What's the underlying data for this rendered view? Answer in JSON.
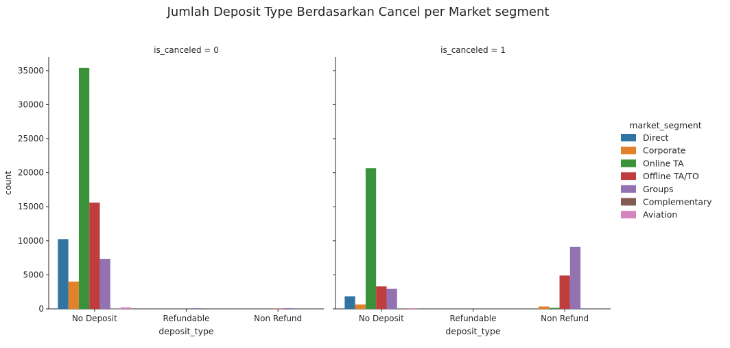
{
  "chart_data": {
    "type": "bar",
    "title": "Jumlah Deposit Type Berdasarkan Cancel per Market segment",
    "ylabel": "count",
    "xlabel": "deposit_type",
    "ylim": [
      0,
      37000
    ],
    "yticks": [
      0,
      5000,
      10000,
      15000,
      20000,
      25000,
      30000,
      35000
    ],
    "categories": [
      "No Deposit",
      "Refundable",
      "Non Refund"
    ],
    "legend": {
      "title": "market_segment",
      "placement": "right",
      "entries": [
        "Direct",
        "Corporate",
        "Online TA",
        "Offline TA/TO",
        "Groups",
        "Complementary",
        "Aviation"
      ]
    },
    "colors": [
      "#3274a1",
      "#e1812c",
      "#3a923a",
      "#c03d3e",
      "#9372b2",
      "#845b53",
      "#d684bd"
    ],
    "panels": [
      {
        "title": "is_canceled = 0",
        "series": [
          {
            "name": "Direct",
            "values": [
              10250,
              0,
              0
            ]
          },
          {
            "name": "Corporate",
            "values": [
              4000,
              0,
              0
            ]
          },
          {
            "name": "Online TA",
            "values": [
              35400,
              0,
              0
            ]
          },
          {
            "name": "Offline TA/TO",
            "values": [
              15600,
              0,
              20
            ]
          },
          {
            "name": "Groups",
            "values": [
              7350,
              100,
              100
            ]
          },
          {
            "name": "Complementary",
            "values": [
              20,
              0,
              0
            ]
          },
          {
            "name": "Aviation",
            "values": [
              230,
              0,
              0
            ]
          }
        ]
      },
      {
        "title": "is_canceled = 1",
        "series": [
          {
            "name": "Direct",
            "values": [
              1850,
              0,
              0
            ]
          },
          {
            "name": "Corporate",
            "values": [
              650,
              0,
              350
            ]
          },
          {
            "name": "Online TA",
            "values": [
              20650,
              0,
              150
            ]
          },
          {
            "name": "Offline TA/TO",
            "values": [
              3300,
              0,
              4900
            ]
          },
          {
            "name": "Groups",
            "values": [
              2950,
              0,
              9100
            ]
          },
          {
            "name": "Complementary",
            "values": [
              10,
              0,
              0
            ]
          },
          {
            "name": "Aviation",
            "values": [
              100,
              0,
              0
            ]
          }
        ]
      }
    ]
  }
}
